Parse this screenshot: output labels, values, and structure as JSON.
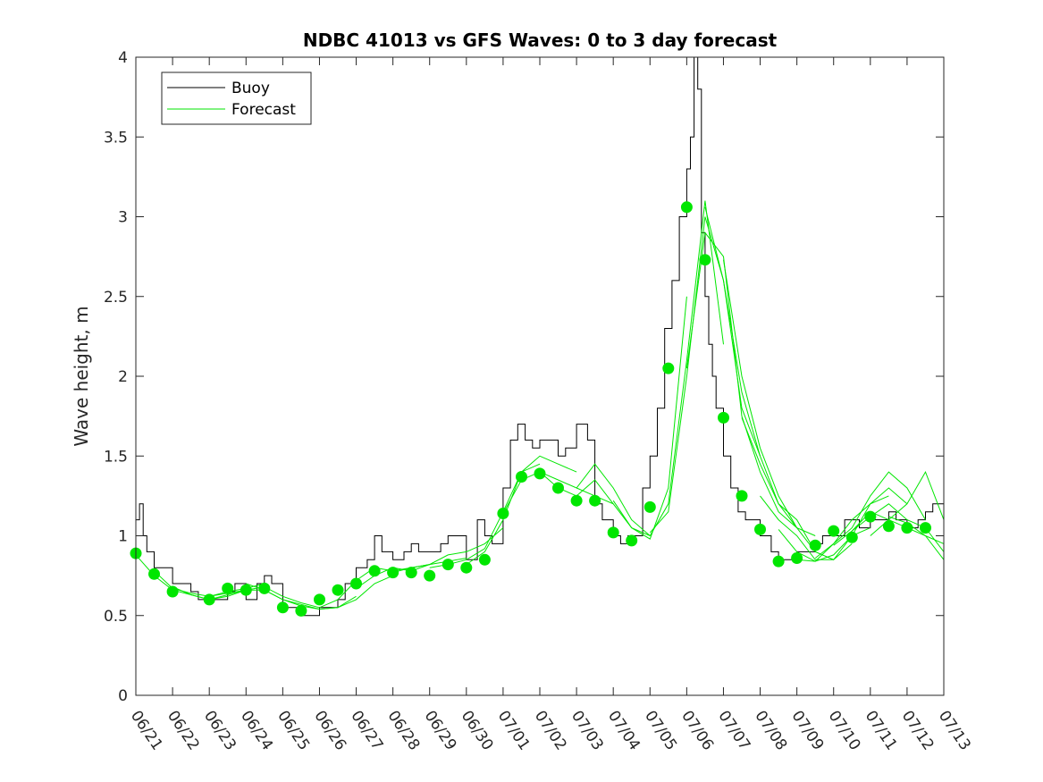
{
  "chart_data": {
    "type": "line",
    "title": "NDBC 41013 vs GFS Waves: 0 to 3 day forecast",
    "ylabel": "Wave height, m",
    "xlabel": "",
    "ylim": [
      0,
      4
    ],
    "yticks": [
      0,
      0.5,
      1,
      1.5,
      2,
      2.5,
      3,
      3.5,
      4
    ],
    "ytick_labels": [
      "0",
      "0.5",
      "1",
      "1.5",
      "2",
      "2.5",
      "3",
      "3.5",
      "4"
    ],
    "xlim_days": [
      0,
      22
    ],
    "xtick_labels": [
      "06/21",
      "06/22",
      "06/23",
      "06/24",
      "06/25",
      "06/26",
      "06/27",
      "06/28",
      "06/29",
      "06/30",
      "07/01",
      "07/02",
      "07/03",
      "07/04",
      "07/05",
      "07/06",
      "07/07",
      "07/08",
      "07/09",
      "07/10",
      "07/11",
      "07/12",
      "07/13"
    ],
    "legend": {
      "position": "top-left",
      "entries": [
        "Buoy",
        "Forecast"
      ]
    },
    "grid": false,
    "colors": {
      "buoy": "#000000",
      "forecast": "#00e600",
      "marker": "#00e600"
    },
    "series": [
      {
        "name": "Buoy",
        "x": [
          0,
          0.1,
          0.2,
          0.3,
          0.5,
          0.7,
          1.0,
          1.3,
          1.5,
          1.7,
          2.0,
          2.3,
          2.5,
          2.7,
          3.0,
          3.3,
          3.5,
          3.7,
          4.0,
          4.3,
          4.5,
          4.7,
          5.0,
          5.3,
          5.5,
          5.7,
          6.0,
          6.3,
          6.5,
          6.7,
          7.0,
          7.3,
          7.5,
          7.7,
          8.0,
          8.3,
          8.5,
          8.7,
          9.0,
          9.3,
          9.5,
          9.7,
          10.0,
          10.2,
          10.4,
          10.6,
          10.8,
          11.0,
          11.3,
          11.5,
          11.7,
          12.0,
          12.3,
          12.5,
          12.7,
          13.0,
          13.2,
          13.4,
          13.6,
          13.8,
          14.0,
          14.2,
          14.4,
          14.6,
          14.8,
          15.0,
          15.1,
          15.2,
          15.3,
          15.4,
          15.5,
          15.6,
          15.7,
          15.8,
          16.0,
          16.2,
          16.4,
          16.6,
          16.8,
          17.0,
          17.3,
          17.5,
          17.7,
          18.0,
          18.3,
          18.5,
          18.7,
          19.0,
          19.3,
          19.5,
          19.7,
          20.0,
          20.3,
          20.5,
          20.7,
          21.0,
          21.3,
          21.5,
          21.7,
          22.0
        ],
        "values": [
          1.1,
          1.2,
          1.0,
          0.9,
          0.8,
          0.8,
          0.7,
          0.7,
          0.65,
          0.6,
          0.6,
          0.6,
          0.65,
          0.7,
          0.6,
          0.7,
          0.75,
          0.7,
          0.55,
          0.55,
          0.5,
          0.5,
          0.55,
          0.55,
          0.6,
          0.7,
          0.8,
          0.85,
          1.0,
          0.9,
          0.85,
          0.9,
          0.95,
          0.9,
          0.9,
          0.95,
          1.0,
          1.0,
          0.85,
          1.1,
          1.0,
          0.95,
          1.3,
          1.6,
          1.7,
          1.6,
          1.55,
          1.6,
          1.6,
          1.5,
          1.55,
          1.7,
          1.6,
          1.2,
          1.1,
          1.0,
          0.95,
          1.0,
          1.0,
          1.3,
          1.5,
          1.8,
          2.3,
          2.6,
          3.0,
          3.3,
          3.5,
          4.0,
          3.8,
          2.9,
          2.5,
          2.2,
          2.0,
          1.8,
          1.5,
          1.3,
          1.15,
          1.1,
          1.1,
          1.0,
          0.9,
          0.85,
          0.85,
          0.9,
          0.9,
          0.95,
          1.0,
          1.0,
          1.1,
          1.1,
          1.05,
          1.1,
          1.1,
          1.15,
          1.1,
          1.05,
          1.1,
          1.15,
          1.2,
          1.1
        ]
      }
    ],
    "forecast_runs": [
      {
        "x": [
          0,
          0.5,
          1,
          1.5,
          2,
          2.5,
          3
        ],
        "values": [
          0.88,
          0.75,
          0.66,
          0.63,
          0.6,
          0.62,
          0.66
        ]
      },
      {
        "x": [
          0.5,
          1,
          1.5,
          2,
          2.5,
          3,
          3.5
        ],
        "values": [
          0.78,
          0.67,
          0.64,
          0.62,
          0.65,
          0.67,
          0.7
        ]
      },
      {
        "x": [
          1,
          1.5,
          2,
          2.5,
          3,
          3.5,
          4
        ],
        "values": [
          0.68,
          0.63,
          0.6,
          0.63,
          0.66,
          0.66,
          0.6
        ]
      },
      {
        "x": [
          2,
          2.5,
          3,
          3.5,
          4,
          4.5,
          5
        ],
        "values": [
          0.62,
          0.64,
          0.66,
          0.68,
          0.62,
          0.58,
          0.55
        ]
      },
      {
        "x": [
          3,
          3.5,
          4,
          4.5,
          5,
          5.5,
          6
        ],
        "values": [
          0.7,
          0.66,
          0.6,
          0.56,
          0.54,
          0.55,
          0.62
        ]
      },
      {
        "x": [
          4,
          4.5,
          5,
          5.5,
          6,
          6.5,
          7
        ],
        "values": [
          0.6,
          0.57,
          0.54,
          0.55,
          0.6,
          0.7,
          0.75
        ]
      },
      {
        "x": [
          5,
          5.5,
          6,
          6.5,
          7,
          7.5,
          8
        ],
        "values": [
          0.55,
          0.6,
          0.72,
          0.8,
          0.78,
          0.8,
          0.82
        ]
      },
      {
        "x": [
          6,
          6.5,
          7,
          7.5,
          8,
          8.5,
          9
        ],
        "values": [
          0.67,
          0.75,
          0.8,
          0.78,
          0.82,
          0.84,
          0.86
        ]
      },
      {
        "x": [
          7,
          7.5,
          8,
          8.5,
          9,
          9.5,
          10
        ],
        "values": [
          0.77,
          0.8,
          0.82,
          0.88,
          0.9,
          0.95,
          1.05
        ]
      },
      {
        "x": [
          8,
          8.5,
          9,
          9.5,
          10,
          10.5,
          11
        ],
        "values": [
          0.8,
          0.82,
          0.85,
          0.92,
          1.15,
          1.4,
          1.45
        ]
      },
      {
        "x": [
          9,
          9.5,
          10,
          10.5,
          11,
          11.5,
          12
        ],
        "values": [
          0.82,
          0.9,
          1.1,
          1.4,
          1.5,
          1.45,
          1.4
        ]
      },
      {
        "x": [
          10,
          10.5,
          11,
          11.5,
          12,
          12.5,
          13
        ],
        "values": [
          1.14,
          1.35,
          1.4,
          1.3,
          1.25,
          1.35,
          1.2
        ]
      },
      {
        "x": [
          11,
          11.5,
          12,
          12.5,
          13,
          13.5,
          14
        ],
        "values": [
          1.4,
          1.35,
          1.3,
          1.45,
          1.3,
          1.1,
          1.0
        ]
      },
      {
        "x": [
          12,
          12.5,
          13,
          13.5,
          14,
          14.5,
          15
        ],
        "values": [
          1.3,
          1.25,
          1.2,
          1.05,
          0.98,
          1.3,
          2.5
        ]
      },
      {
        "x": [
          13,
          13.5,
          14,
          14.5,
          15,
          15.5,
          16
        ],
        "values": [
          1.22,
          1.05,
          1.0,
          1.2,
          2.1,
          3.1,
          2.2
        ]
      },
      {
        "x": [
          14,
          14.5,
          15,
          15.5,
          16,
          16.5,
          17
        ],
        "values": [
          1.02,
          1.15,
          2.0,
          3.0,
          2.6,
          1.8,
          1.5
        ]
      },
      {
        "x": [
          15,
          15.5,
          16,
          16.5,
          17,
          17.5,
          18
        ],
        "values": [
          2.05,
          2.9,
          2.75,
          1.75,
          1.4,
          1.15,
          1.05
        ]
      },
      {
        "x": [
          15.5,
          16,
          16.5,
          17,
          17.5,
          18,
          18.5
        ],
        "values": [
          3.06,
          2.6,
          1.9,
          1.5,
          1.2,
          1.05,
          1.0
        ]
      },
      {
        "x": [
          16,
          16.5,
          17,
          17.5,
          18,
          18.5,
          19
        ],
        "values": [
          2.73,
          2.0,
          1.55,
          1.25,
          1.05,
          0.9,
          0.85
        ]
      },
      {
        "x": [
          16.5,
          17,
          17.5,
          18,
          18.5,
          19,
          19.5
        ],
        "values": [
          1.74,
          1.45,
          1.2,
          1.1,
          0.9,
          0.85,
          0.95
        ]
      },
      {
        "x": [
          17,
          17.5,
          18,
          18.5,
          19,
          19.5,
          20
        ],
        "values": [
          1.25,
          1.1,
          1.0,
          0.85,
          0.85,
          1.0,
          1.05
        ]
      },
      {
        "x": [
          17.5,
          18,
          18.5,
          19,
          19.5,
          20,
          20.5
        ],
        "values": [
          1.04,
          0.9,
          0.84,
          0.88,
          1.0,
          1.2,
          1.25
        ]
      },
      {
        "x": [
          18,
          18.5,
          19,
          19.5,
          20,
          20.5,
          21
        ],
        "values": [
          0.85,
          0.84,
          0.95,
          1.1,
          1.2,
          1.3,
          1.2
        ]
      },
      {
        "x": [
          18.5,
          19,
          19.5,
          20,
          20.5,
          21,
          21.5
        ],
        "values": [
          0.86,
          0.95,
          1.05,
          1.25,
          1.4,
          1.3,
          1.1
        ]
      },
      {
        "x": [
          19,
          19.5,
          20,
          20.5,
          21,
          21.5,
          22
        ],
        "values": [
          0.94,
          1.03,
          1.15,
          1.1,
          1.2,
          1.4,
          1.1
        ]
      },
      {
        "x": [
          19.5,
          20,
          20.5,
          21,
          21.5,
          22
        ],
        "values": [
          1.03,
          1.12,
          1.2,
          1.1,
          1.05,
          0.9
        ]
      },
      {
        "x": [
          20,
          20.5,
          21,
          21.5,
          22
        ],
        "values": [
          1.0,
          1.1,
          1.05,
          1.0,
          0.85
        ]
      },
      {
        "x": [
          20.5,
          21,
          21.5,
          22
        ],
        "values": [
          1.12,
          1.08,
          1.0,
          0.95
        ]
      }
    ],
    "markers": {
      "name": "Forecast",
      "x": [
        0,
        0.5,
        1,
        2,
        2.5,
        3,
        3.5,
        4,
        4.5,
        5,
        5.5,
        6,
        6.5,
        7,
        7.5,
        8,
        8.5,
        9,
        9.5,
        10,
        10.5,
        11,
        11.5,
        12,
        12.5,
        13,
        13.5,
        14,
        14.5,
        15,
        15.5,
        16,
        16.5,
        17,
        17.5,
        18,
        18.5,
        19,
        19.5,
        20,
        20.5,
        21,
        21.5
      ],
      "values": [
        0.89,
        0.76,
        0.65,
        0.6,
        0.67,
        0.66,
        0.67,
        0.55,
        0.53,
        0.6,
        0.66,
        0.7,
        0.78,
        0.77,
        0.77,
        0.75,
        0.82,
        0.8,
        0.85,
        1.14,
        1.37,
        1.39,
        1.3,
        1.22,
        1.22,
        1.02,
        0.97,
        1.18,
        2.05,
        3.06,
        2.73,
        1.74,
        1.25,
        1.04,
        0.84,
        0.86,
        0.94,
        1.03,
        0.99,
        1.12,
        1.06,
        1.05,
        1.05
      ]
    }
  }
}
